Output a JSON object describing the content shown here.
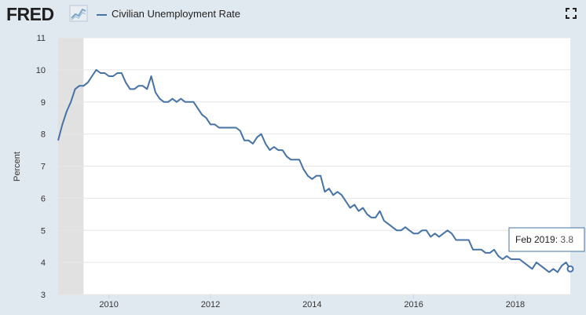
{
  "header": {
    "logo_text": "FRED",
    "legend_label": "Civilian Unemployment Rate",
    "fullscreen_icon": "fullscreen-icon",
    "logo_icon": "fred-graph-icon"
  },
  "colors": {
    "line": "#4572a7",
    "background": "#e1e9f0",
    "plot": "#ffffff",
    "recession": "#e1e1e1"
  },
  "tooltip": {
    "label": "Feb 2019",
    "value": "3.8"
  },
  "chart_data": {
    "type": "line",
    "ylabel": "Percent",
    "ylim": [
      3,
      11
    ],
    "xlim": [
      "2009-01",
      "2019-02"
    ],
    "yticks": [
      "3",
      "4",
      "5",
      "6",
      "7",
      "8",
      "9",
      "10",
      "11"
    ],
    "xticks": [
      "2010",
      "2012",
      "2014",
      "2016",
      "2018"
    ],
    "grid": true,
    "recession_shading": [
      "2009-01",
      "2009-06"
    ],
    "series": [
      {
        "name": "Civilian Unemployment Rate",
        "start": "2009-01",
        "frequency": "monthly",
        "values": [
          7.8,
          8.3,
          8.7,
          9.0,
          9.4,
          9.5,
          9.5,
          9.6,
          9.8,
          10.0,
          9.9,
          9.9,
          9.8,
          9.8,
          9.9,
          9.9,
          9.6,
          9.4,
          9.4,
          9.5,
          9.5,
          9.4,
          9.8,
          9.3,
          9.1,
          9.0,
          9.0,
          9.1,
          9.0,
          9.1,
          9.0,
          9.0,
          9.0,
          8.8,
          8.6,
          8.5,
          8.3,
          8.3,
          8.2,
          8.2,
          8.2,
          8.2,
          8.2,
          8.1,
          7.8,
          7.8,
          7.7,
          7.9,
          8.0,
          7.7,
          7.5,
          7.6,
          7.5,
          7.5,
          7.3,
          7.2,
          7.2,
          7.2,
          6.9,
          6.7,
          6.6,
          6.7,
          6.7,
          6.2,
          6.3,
          6.1,
          6.2,
          6.1,
          5.9,
          5.7,
          5.8,
          5.6,
          5.7,
          5.5,
          5.4,
          5.4,
          5.6,
          5.3,
          5.2,
          5.1,
          5.0,
          5.0,
          5.1,
          5.0,
          4.9,
          4.9,
          5.0,
          5.0,
          4.8,
          4.9,
          4.8,
          4.9,
          5.0,
          4.9,
          4.7,
          4.7,
          4.7,
          4.7,
          4.4,
          4.4,
          4.4,
          4.3,
          4.3,
          4.4,
          4.2,
          4.1,
          4.2,
          4.1,
          4.1,
          4.1,
          4.0,
          3.9,
          3.8,
          4.0,
          3.9,
          3.8,
          3.7,
          3.8,
          3.7,
          3.9,
          4.0,
          3.8
        ]
      }
    ]
  }
}
